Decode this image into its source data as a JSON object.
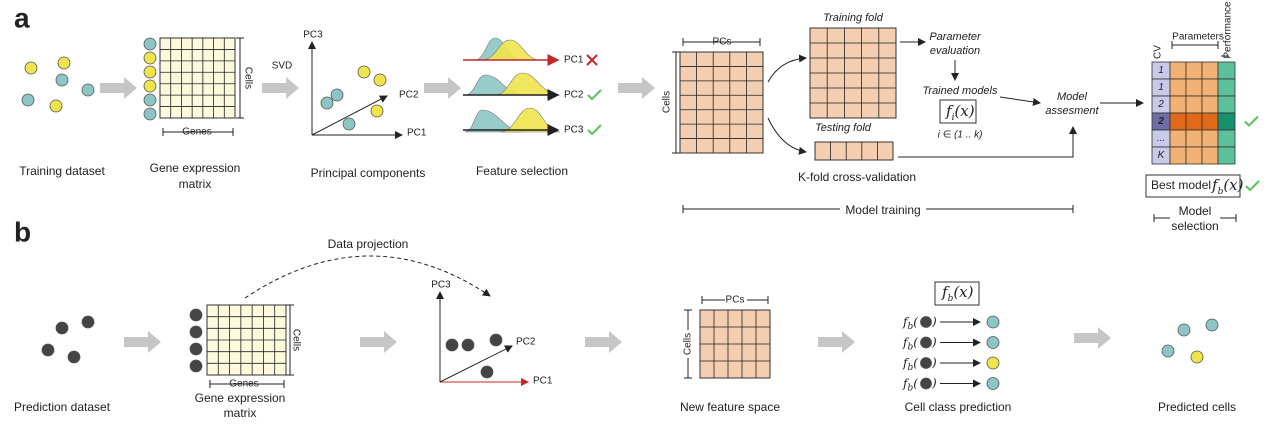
{
  "panel_a": {
    "label": "a",
    "training_dataset": "Training dataset",
    "matrix": {
      "title": [
        "Gene expression",
        "matrix"
      ],
      "rows": "Cells",
      "cols": "Genes"
    },
    "svd": "SVD",
    "pca": {
      "axes": [
        "PC3",
        "PC2",
        "PC1"
      ],
      "title": "Principal components"
    },
    "feature_selection": {
      "pcs": [
        "PC1",
        "PC2",
        "PC3"
      ],
      "title": "Feature selection"
    },
    "cv": {
      "cols": "PCs",
      "rows": "Cells",
      "training_fold": "Training fold",
      "testing_fold": "Testing fold",
      "parameter_evaluation": [
        "Parameter",
        "evaluation"
      ],
      "trained_models": "Trained models",
      "model_fn": {
        "base": "f",
        "sub": "i",
        "rest": "(x)"
      },
      "index_range": "i ∈ (1 .. k)",
      "model_assessment": [
        "Model",
        "assesment"
      ],
      "title": "K-fold cross-validation"
    },
    "model_training": "Model training",
    "selection": {
      "cv": "CV",
      "parameters": "Parameters",
      "performance": "Performance",
      "rows": [
        "1",
        "1",
        "2",
        "2",
        "...",
        "K"
      ],
      "best_model": "Best model",
      "best_fn": {
        "base": "f",
        "sub": "b",
        "rest": "(x)"
      },
      "title": [
        "Model",
        "selection"
      ]
    }
  },
  "panel_b": {
    "label": "b",
    "data_projection": "Data projection",
    "prediction_dataset": "Prediction dataset",
    "matrix": {
      "title": [
        "Gene expression",
        "matrix"
      ],
      "rows": "Cells",
      "cols": "Genes"
    },
    "pca": {
      "axes": [
        "PC3",
        "PC2",
        "PC1"
      ]
    },
    "feature_space": {
      "cols": "PCs",
      "rows": "Cells",
      "title": "New feature space"
    },
    "prediction": {
      "model_fn": {
        "base": "f",
        "sub": "b",
        "rest": "(x)"
      },
      "calls": [
        {
          "base": "f",
          "sub": "b",
          "open": "(",
          "close": ")"
        },
        {
          "base": "f",
          "sub": "b",
          "open": "(",
          "close": ")"
        },
        {
          "base": "f",
          "sub": "b",
          "open": "(",
          "close": ")"
        },
        {
          "base": "f",
          "sub": "b",
          "open": "(",
          "close": ")"
        }
      ],
      "title": "Cell class prediction"
    },
    "predicted_cells": "Predicted cells"
  }
}
